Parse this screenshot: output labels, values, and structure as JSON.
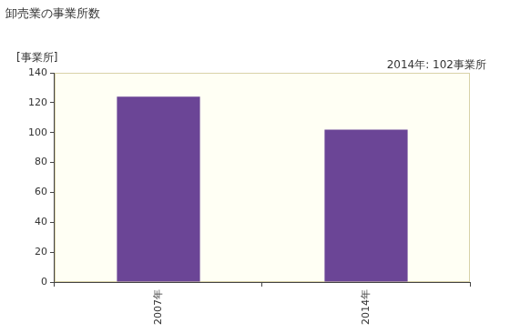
{
  "chart_data": {
    "type": "bar",
    "title": "卸売業の事業所数",
    "ylabel": "[事業所]",
    "annotation": "2014年: 102事業所",
    "categories": [
      "2007年",
      "2014年"
    ],
    "values": [
      124,
      102
    ],
    "color": "#6b4596",
    "ylim": [
      0,
      140
    ],
    "yticks": [
      0,
      20,
      40,
      60,
      80,
      100,
      120,
      140
    ],
    "grid": false
  }
}
